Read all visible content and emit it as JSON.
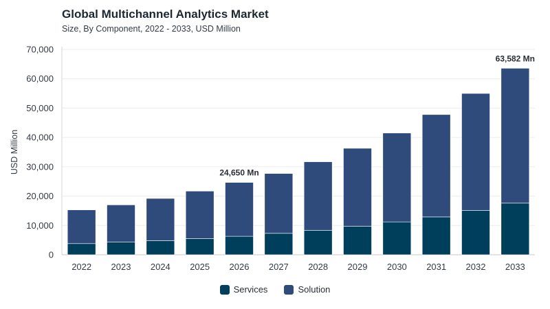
{
  "title": "Global Multichannel Analytics Market",
  "subtitle": "Size, By Component, 2022 - 2033, USD Million",
  "chart_data": {
    "type": "bar",
    "stacked": true,
    "categories": [
      "2022",
      "2023",
      "2024",
      "2025",
      "2026",
      "2027",
      "2028",
      "2029",
      "2030",
      "2031",
      "2032",
      "2033"
    ],
    "series": [
      {
        "name": "Services",
        "color": "#003f5c",
        "values": [
          3800,
          4300,
          4800,
          5500,
          6300,
          7300,
          8300,
          9700,
          11200,
          12900,
          15100,
          17600
        ]
      },
      {
        "name": "Solution",
        "color": "#2f4b7c",
        "values": [
          11500,
          12700,
          14400,
          16200,
          18350,
          20400,
          23400,
          26600,
          30300,
          34900,
          39900,
          45982
        ]
      }
    ],
    "ylabel": "USD Million",
    "xlabel": "",
    "ylim": [
      0,
      70000
    ],
    "yticks": [
      "0",
      "10,000",
      "20,000",
      "30,000",
      "40,000",
      "50,000",
      "60,000",
      "70,000"
    ],
    "annotations": [
      {
        "category": "2026",
        "text": "24,650 Mn"
      },
      {
        "category": "2033",
        "text": "63,582 Mn"
      }
    ],
    "grid": true,
    "legend": "bottom-center"
  }
}
